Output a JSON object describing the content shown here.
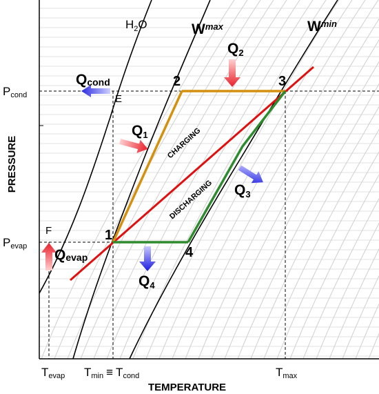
{
  "axes": {
    "x_label": "TEMPERATURE",
    "y_label": "PRESSURE"
  },
  "curves": {
    "water": "H",
    "water_sub": "2",
    "water_tail": "O",
    "wmax": "W",
    "wmax_sub": "max",
    "wmin": "W",
    "wmin_sub": "min"
  },
  "pressure_labels": {
    "p_cond": "P",
    "p_cond_sub": "cond",
    "p_evap": "P",
    "p_evap_sub": "evap"
  },
  "temperature_labels": {
    "t_evap": "T",
    "t_evap_sub": "evap",
    "t_min": "T",
    "t_min_sub": "min",
    "t_equiv": "≡",
    "t_cond": "T",
    "t_cond_sub": "cond",
    "t_max": "T",
    "t_max_sub": "max"
  },
  "points": {
    "p1": "1",
    "p2": "2",
    "p3": "3",
    "p4": "4",
    "e": "E",
    "f": "F"
  },
  "heat_flows": {
    "q1": "Q",
    "q1_sub": "1",
    "q2": "Q",
    "q2_sub": "2",
    "q3": "Q",
    "q3_sub": "3",
    "q4": "Q",
    "q4_sub": "4",
    "qcond": "Q",
    "qcond_sub": "cond",
    "qevap": "Q",
    "qevap_sub": "evap"
  },
  "phase_labels": {
    "charging": "CHARGING",
    "discharging": "DISCHARGING"
  },
  "colors": {
    "charging_line": "#d4900f",
    "discharging_line": "#2e8b2e",
    "equilibrium_line": "#e01010",
    "heat_in_arrow": "#e8303a",
    "heat_out_arrow": "#2a2ae0"
  }
}
